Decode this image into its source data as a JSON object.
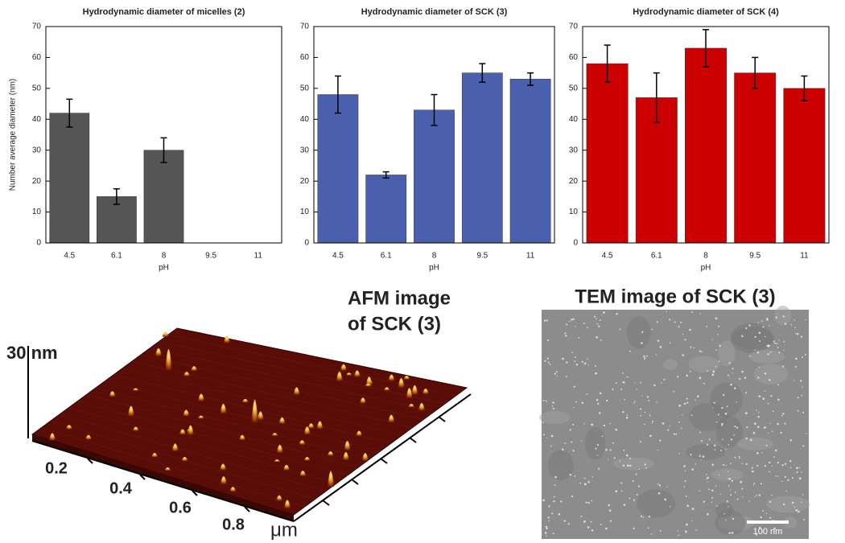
{
  "chart_data": [
    {
      "type": "bar",
      "title": "Hydrodynamic diameter of micelles (2)",
      "ylabel": "Number average diameter (nm)",
      "xlabel": "pH",
      "categories": [
        "4.5",
        "6.1",
        "8",
        "9.5",
        "11"
      ],
      "values": [
        42,
        15,
        30,
        null,
        null
      ],
      "errors": [
        4.5,
        2.5,
        4,
        null,
        null
      ],
      "color": "#555555",
      "ylim": [
        0,
        70
      ],
      "yticks": [
        0,
        10,
        20,
        30,
        40,
        50,
        60,
        70
      ]
    },
    {
      "type": "bar",
      "title": "Hydrodynamic diameter of SCK (3)",
      "xlabel": "pH",
      "categories": [
        "4.5",
        "6.1",
        "8",
        "9.5",
        "11"
      ],
      "values": [
        48,
        22,
        43,
        55,
        53
      ],
      "errors": [
        6,
        1,
        5,
        3,
        2
      ],
      "color": "#4a5fae",
      "ylim": [
        0,
        70
      ],
      "yticks": [
        0,
        10,
        20,
        30,
        40,
        50,
        60,
        70
      ]
    },
    {
      "type": "bar",
      "title": "Hydrodynamic diameter of SCK (4)",
      "xlabel": "pH",
      "categories": [
        "4.5",
        "6.1",
        "8",
        "9.5",
        "11"
      ],
      "values": [
        58,
        47,
        63,
        55,
        50
      ],
      "errors": [
        6,
        8,
        6,
        5,
        4
      ],
      "color": "#cc0000",
      "ylim": [
        0,
        70
      ],
      "yticks": [
        0,
        10,
        20,
        30,
        40,
        50,
        60,
        70
      ]
    }
  ],
  "afm": {
    "title_lines": [
      "AFM image",
      "of SCK (3)"
    ],
    "z_label": "30 nm",
    "ticks": [
      0.2,
      0.4,
      0.6,
      0.8
    ],
    "unit": "μm"
  },
  "tem": {
    "title": "TEM image of SCK (3)",
    "scale_label": "100 nm"
  }
}
